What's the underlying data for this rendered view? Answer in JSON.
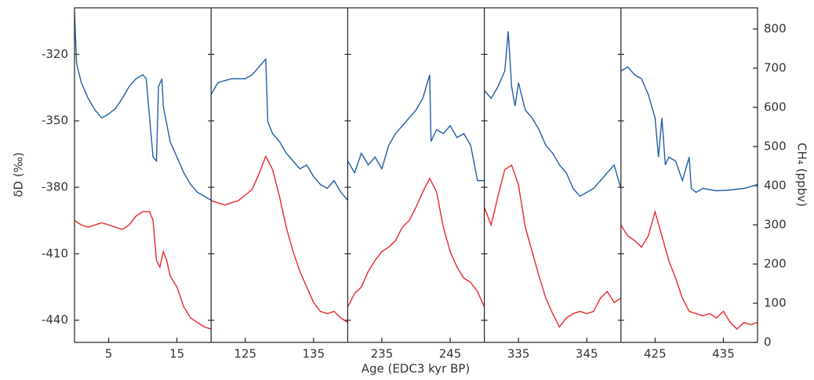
{
  "chart_data": {
    "type": "line",
    "ylabel": "δD (‰)",
    "y2label": "CH₄ (ppbv)",
    "xlabel": "Age (EDC3 kyr BP)",
    "ylim": [
      -450,
      -299
    ],
    "yticks": [
      -320,
      -350,
      -380,
      -410,
      -440
    ],
    "y2lim": [
      0,
      854
    ],
    "y2ticks": [
      0,
      100,
      200,
      300,
      400,
      500,
      600,
      700,
      800
    ],
    "panels": [
      {
        "xlim": [
          0,
          20
        ],
        "xticks": [
          5,
          15
        ],
        "series": [
          {
            "color": "#1f5fa8",
            "axis": "y2",
            "x": [
              0,
              0.3,
              1,
              2,
              3,
              4,
              5,
              6,
              7,
              8,
              9,
              10,
              10.5,
              11,
              11.5,
              12,
              12.3,
              12.8,
              13,
              14,
              15,
              16,
              17,
              18,
              19,
              20
            ],
            "values": [
              844,
              713,
              663,
              623,
              593,
              573,
              583,
              597,
              623,
              653,
              673,
              683,
              673,
              573,
              473,
              463,
              653,
              673,
              603,
              513,
              473,
              433,
              403,
              383,
              373,
              363
            ]
          },
          {
            "color": "#e8262a",
            "x": [
              0,
              1,
              2,
              3,
              4,
              5,
              6,
              7,
              8,
              9,
              10,
              11,
              11.5,
              12,
              12.5,
              13,
              13.5,
              14,
              15,
              16,
              17,
              18,
              19,
              20
            ],
            "values": [
              -395,
              -397,
              -398,
              -397,
              -396,
              -397,
              -398,
              -399,
              -397,
              -393,
              -391,
              -391,
              -395,
              -413,
              -416,
              -409,
              -413,
              -420,
              -425,
              -434,
              -439,
              -441,
              -443,
              -444
            ]
          }
        ]
      },
      {
        "xlim": [
          120,
          140
        ],
        "xticks": [
          125,
          135
        ],
        "series": [
          {
            "color": "#1f5fa8",
            "axis": "y2",
            "x": [
              120,
              121,
              123,
              125,
              126,
              127,
              128,
              128.3,
              129,
              130,
              131,
              132,
              133,
              134,
              135,
              136,
              137,
              138,
              139,
              140
            ],
            "values": [
              633,
              663,
              673,
              673,
              683,
              703,
              723,
              563,
              533,
              513,
              483,
              463,
              443,
              453,
              423,
              403,
              393,
              413,
              383,
              363
            ]
          },
          {
            "color": "#e8262a",
            "x": [
              120,
              122,
              124,
              126,
              127,
              128,
              129,
              130,
              131,
              132,
              133,
              134,
              135,
              136,
              137,
              138,
              139,
              140
            ],
            "values": [
              -386,
              -388,
              -386,
              -381,
              -374,
              -366,
              -372,
              -384,
              -398,
              -409,
              -418,
              -425,
              -432,
              -436,
              -437,
              -436,
              -439,
              -441
            ]
          }
        ]
      },
      {
        "xlim": [
          230,
          250
        ],
        "xticks": [
          235,
          245
        ],
        "series": [
          {
            "color": "#1f5fa8",
            "axis": "y2",
            "x": [
              230,
              231,
              232,
              233,
              234,
              235,
              236,
              237,
              238,
              239,
              240,
              241,
              242,
              242.2,
              243,
              244,
              245,
              246,
              247,
              248,
              249,
              250
            ],
            "values": [
              463,
              433,
              483,
              453,
              473,
              443,
              503,
              533,
              553,
              573,
              593,
              623,
              683,
              513,
              543,
              533,
              553,
              523,
              533,
              503,
              413,
              413
            ]
          },
          {
            "color": "#e8262a",
            "x": [
              230,
              231,
              232,
              233,
              234,
              235,
              236,
              237,
              238,
              239,
              240,
              241,
              242,
              243,
              244,
              245,
              246,
              247,
              248,
              249,
              250
            ],
            "values": [
              -434,
              -428,
              -425,
              -418,
              -413,
              -409,
              -407,
              -404,
              -398,
              -395,
              -389,
              -382,
              -376,
              -382,
              -398,
              -409,
              -416,
              -421,
              -423,
              -427,
              -434
            ]
          }
        ]
      },
      {
        "xlim": [
          330,
          350
        ],
        "xticks": [
          335,
          345
        ],
        "series": [
          {
            "color": "#1f5fa8",
            "axis": "y2",
            "x": [
              330,
              331,
              332,
              333,
              333.5,
              334,
              334.5,
              335,
              336,
              337,
              338,
              339,
              340,
              341,
              342,
              343,
              344,
              345,
              346,
              347,
              348,
              349,
              350
            ],
            "values": [
              643,
              623,
              653,
              693,
              794,
              653,
              603,
              663,
              593,
              573,
              543,
              503,
              483,
              453,
              433,
              393,
              373,
              383,
              393,
              413,
              433,
              453,
              393
            ]
          },
          {
            "color": "#e8262a",
            "x": [
              330,
              331,
              332,
              333,
              334,
              335,
              336,
              337,
              338,
              339,
              340,
              341,
              342,
              343,
              344,
              345,
              346,
              347,
              348,
              349,
              350
            ],
            "values": [
              -389,
              -397,
              -384,
              -372,
              -370,
              -379,
              -398,
              -409,
              -420,
              -430,
              -437,
              -443,
              -439,
              -437,
              -436,
              -437,
              -436,
              -430,
              -427,
              -432,
              -430
            ]
          }
        ]
      },
      {
        "xlim": [
          420,
          440
        ],
        "xticks": [
          425,
          435
        ],
        "series": [
          {
            "color": "#1f5fa8",
            "axis": "y2",
            "x": [
              420,
              421,
              422,
              423,
              424,
              425,
              425.5,
              426,
              426.5,
              427,
              428,
              429,
              430,
              430.3,
              431,
              432,
              434,
              436,
              438,
              440
            ],
            "values": [
              693,
              703,
              683,
              673,
              633,
              573,
              473,
              573,
              453,
              473,
              463,
              413,
              473,
              393,
              383,
              393,
              387,
              389,
              393,
              403
            ]
          },
          {
            "color": "#e8262a",
            "x": [
              420,
              421,
              422,
              423,
              424,
              425,
              426,
              427,
              428,
              429,
              430,
              431,
              432,
              433,
              434,
              435,
              436,
              437,
              438,
              439,
              440
            ],
            "values": [
              -397,
              -402,
              -404,
              -407,
              -402,
              -391,
              -402,
              -413,
              -421,
              -430,
              -436,
              -437,
              -438,
              -437,
              -439,
              -436,
              -441,
              -444,
              -441,
              -442,
              -441
            ]
          }
        ]
      }
    ]
  }
}
